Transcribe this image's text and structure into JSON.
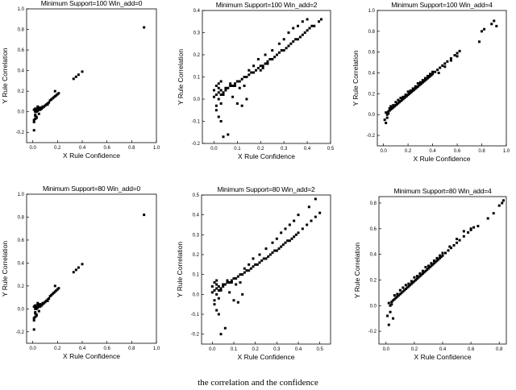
{
  "chart_data": [
    {
      "type": "scatter",
      "title": "Minimum Support=100  Win_add=0",
      "xlabel": "X Rule Confidence",
      "ylabel": "Y Rule Correlation",
      "xlim": [
        -0.05,
        1.0
      ],
      "ylim": [
        -0.3,
        1.0
      ],
      "xticks": [
        "0.0",
        "0.2",
        "0.4",
        "0.6",
        "0.8",
        "1.0"
      ],
      "yticks": [
        "-0.2",
        "0.0",
        "0.2",
        "0.4",
        "0.6",
        "0.8",
        "1.0"
      ],
      "grid": false,
      "series": [
        {
          "x": [
            0.01,
            0.01,
            0.02,
            0.02,
            0.02,
            0.03,
            0.03,
            0.04,
            0.04,
            0.05,
            0.05,
            0.06,
            0.07,
            0.08,
            0.09,
            0.1,
            0.11,
            0.12,
            0.13,
            0.14,
            0.15,
            0.16,
            0.17,
            0.18,
            0.19,
            0.2,
            0.21,
            0.02,
            0.03,
            0.05,
            0.07,
            0.01,
            0.02,
            0.03,
            0.01,
            0.02,
            0.04,
            0.06,
            0.08,
            0.1,
            0.12,
            0.18,
            0.33,
            0.35,
            0.37,
            0.4,
            0.9
          ],
          "y": [
            -0.18,
            -0.1,
            -0.07,
            -0.03,
            0.0,
            0.02,
            -0.05,
            0.01,
            0.04,
            0.03,
            -0.02,
            0.02,
            0.03,
            0.04,
            0.05,
            0.06,
            0.07,
            0.08,
            0.09,
            0.11,
            0.12,
            0.13,
            0.14,
            0.15,
            0.16,
            0.17,
            0.18,
            0.01,
            0.0,
            0.02,
            0.03,
            -0.08,
            -0.04,
            -0.06,
            0.02,
            0.03,
            0.05,
            0.04,
            0.05,
            0.06,
            0.07,
            0.2,
            0.32,
            0.34,
            0.36,
            0.39,
            0.82
          ]
        }
      ]
    },
    {
      "type": "scatter",
      "title": "Minimum Support=100  Win_add=2",
      "xlabel": "X Rule Confidence",
      "ylabel": "Y Rule Correlation",
      "xlim": [
        -0.05,
        0.5
      ],
      "ylim": [
        -0.2,
        0.4
      ],
      "xticks": [
        "0.0",
        "0.1",
        "0.2",
        "0.3",
        "0.4",
        "0.5"
      ],
      "yticks": [
        "-0.2",
        "-0.1",
        "0.0",
        "0.1",
        "0.2",
        "0.3",
        "0.4"
      ],
      "grid": false,
      "series": [
        {
          "x": [
            0.0,
            0.01,
            0.01,
            0.02,
            0.02,
            0.03,
            0.03,
            0.04,
            0.05,
            0.06,
            0.07,
            0.08,
            0.09,
            0.1,
            0.11,
            0.12,
            0.13,
            0.14,
            0.15,
            0.16,
            0.17,
            0.18,
            0.19,
            0.2,
            0.21,
            0.22,
            0.23,
            0.24,
            0.25,
            0.26,
            0.27,
            0.28,
            0.29,
            0.3,
            0.31,
            0.32,
            0.33,
            0.34,
            0.35,
            0.36,
            0.37,
            0.38,
            0.39,
            0.4,
            0.41,
            0.42,
            0.43,
            0.45,
            0.46,
            0.01,
            0.02,
            0.03,
            0.04,
            0.06,
            0.08,
            0.1,
            0.12,
            0.14,
            0.05,
            0.07,
            0.09,
            0.11,
            0.13,
            0.0,
            0.01,
            0.02,
            0.03,
            0.04,
            0.02,
            0.03,
            0.15,
            0.17,
            0.19,
            0.22,
            0.25,
            0.28,
            0.3,
            0.32,
            0.34,
            0.36,
            0.38,
            0.4,
            0.2,
            0.21,
            0.23,
            0.25,
            0.27
          ],
          "y": [
            0.01,
            -0.03,
            0.02,
            0.0,
            0.03,
            0.02,
            0.04,
            0.03,
            0.04,
            0.05,
            0.06,
            0.06,
            0.07,
            0.08,
            0.08,
            0.09,
            0.1,
            0.1,
            0.11,
            0.12,
            0.12,
            0.13,
            0.14,
            0.15,
            0.15,
            0.16,
            0.17,
            0.18,
            0.18,
            0.19,
            0.2,
            0.21,
            0.22,
            0.22,
            0.23,
            0.24,
            0.25,
            0.26,
            0.27,
            0.27,
            0.28,
            0.29,
            0.3,
            0.31,
            0.32,
            0.33,
            0.33,
            0.35,
            0.36,
            -0.05,
            -0.08,
            -0.1,
            -0.17,
            -0.16,
            0.01,
            -0.02,
            -0.03,
            0.0,
            0.05,
            0.07,
            0.06,
            0.05,
            0.06,
            0.04,
            0.06,
            0.05,
            -0.02,
            0.02,
            0.07,
            0.08,
            0.13,
            0.15,
            0.18,
            0.2,
            0.22,
            0.25,
            0.27,
            0.3,
            0.32,
            0.33,
            0.35,
            0.36,
            0.13,
            0.14,
            0.16,
            0.18,
            0.2
          ]
        }
      ]
    },
    {
      "type": "scatter",
      "title": "Minimum Support=100  Win_add=4",
      "xlabel": "X Rule Confidence",
      "ylabel": "Y Rule Correlation",
      "xlim": [
        -0.05,
        1.0
      ],
      "ylim": [
        -0.3,
        1.0
      ],
      "xticks": [
        "0.0",
        "0.2",
        "0.4",
        "0.6",
        "0.8",
        "1.0"
      ],
      "yticks": [
        "-0.2",
        "0.0",
        "0.2",
        "0.4",
        "0.6",
        "0.8",
        "1.0"
      ],
      "grid": false,
      "series": [
        {
          "x": [
            0.01,
            0.02,
            0.03,
            0.04,
            0.05,
            0.06,
            0.07,
            0.08,
            0.09,
            0.1,
            0.11,
            0.12,
            0.13,
            0.14,
            0.15,
            0.16,
            0.17,
            0.18,
            0.19,
            0.2,
            0.21,
            0.22,
            0.23,
            0.24,
            0.25,
            0.26,
            0.27,
            0.28,
            0.29,
            0.3,
            0.31,
            0.32,
            0.33,
            0.34,
            0.35,
            0.36,
            0.37,
            0.38,
            0.39,
            0.4,
            0.42,
            0.44,
            0.46,
            0.48,
            0.5,
            0.52,
            0.55,
            0.58,
            0.6,
            0.62,
            0.02,
            0.03,
            0.04,
            0.05,
            0.06,
            0.08,
            0.1,
            0.12,
            0.14,
            0.16,
            0.18,
            0.2,
            0.22,
            0.24,
            0.26,
            0.28,
            0.3,
            0.32,
            0.34,
            0.36,
            0.38,
            0.4,
            0.45,
            0.5,
            0.55,
            0.6,
            0.78,
            0.8,
            0.82,
            0.88,
            0.9,
            0.92
          ],
          "y": [
            -0.05,
            0.02,
            0.0,
            0.03,
            0.04,
            0.05,
            0.06,
            0.07,
            0.08,
            0.09,
            0.1,
            0.11,
            0.12,
            0.13,
            0.14,
            0.15,
            0.16,
            0.17,
            0.18,
            0.19,
            0.2,
            0.21,
            0.22,
            0.23,
            0.24,
            0.25,
            0.26,
            0.27,
            0.28,
            0.29,
            0.3,
            0.31,
            0.32,
            0.33,
            0.34,
            0.35,
            0.36,
            0.37,
            0.38,
            0.39,
            0.41,
            0.43,
            0.45,
            0.47,
            0.49,
            0.51,
            0.54,
            0.57,
            0.59,
            0.61,
            -0.08,
            -0.03,
            0.01,
            0.06,
            0.08,
            0.09,
            0.12,
            0.14,
            0.16,
            0.17,
            0.19,
            0.22,
            0.23,
            0.25,
            0.27,
            0.3,
            0.31,
            0.33,
            0.35,
            0.37,
            0.39,
            0.41,
            0.4,
            0.46,
            0.52,
            0.56,
            0.7,
            0.8,
            0.82,
            0.87,
            0.9,
            0.85
          ]
        }
      ]
    },
    {
      "type": "scatter",
      "title": "Minimum Support=80  Win_add=0",
      "xlabel": "X Rule Confidence",
      "ylabel": "Y Rule Correlation",
      "xlim": [
        -0.05,
        1.0
      ],
      "ylim": [
        -0.3,
        1.0
      ],
      "xticks": [
        "0.0",
        "0.2",
        "0.4",
        "0.6",
        "0.8",
        "1.0"
      ],
      "yticks": [
        "-0.2",
        "0.0",
        "0.2",
        "0.4",
        "0.6",
        "0.8",
        "1.0"
      ],
      "grid": false,
      "series": [
        {
          "x": [
            0.01,
            0.01,
            0.02,
            0.02,
            0.02,
            0.03,
            0.03,
            0.04,
            0.04,
            0.05,
            0.05,
            0.06,
            0.07,
            0.08,
            0.09,
            0.1,
            0.11,
            0.12,
            0.13,
            0.14,
            0.15,
            0.16,
            0.17,
            0.18,
            0.19,
            0.2,
            0.21,
            0.02,
            0.03,
            0.05,
            0.07,
            0.01,
            0.02,
            0.03,
            0.01,
            0.02,
            0.04,
            0.06,
            0.08,
            0.1,
            0.12,
            0.18,
            0.33,
            0.35,
            0.37,
            0.4,
            0.9
          ],
          "y": [
            -0.18,
            -0.1,
            -0.07,
            -0.03,
            0.0,
            0.02,
            -0.05,
            0.01,
            0.04,
            0.03,
            -0.02,
            0.02,
            0.03,
            0.04,
            0.05,
            0.06,
            0.07,
            0.08,
            0.09,
            0.11,
            0.12,
            0.13,
            0.14,
            0.15,
            0.16,
            0.17,
            0.18,
            0.01,
            0.0,
            0.02,
            0.03,
            -0.08,
            -0.04,
            -0.06,
            0.02,
            0.03,
            0.05,
            0.04,
            0.05,
            0.06,
            0.07,
            0.2,
            0.32,
            0.34,
            0.36,
            0.39,
            0.82
          ]
        }
      ]
    },
    {
      "type": "scatter",
      "title": "Minimum Support=80  Win_add=2",
      "xlabel": "X Rule Confidence",
      "ylabel": "Y Rule Correlation",
      "xlim": [
        -0.05,
        0.55
      ],
      "ylim": [
        -0.25,
        0.5
      ],
      "xticks": [
        "0.0",
        "0.1",
        "0.2",
        "0.3",
        "0.4",
        "0.5"
      ],
      "yticks": [
        "-0.2",
        "-0.1",
        "0.0",
        "0.1",
        "0.2",
        "0.3",
        "0.4",
        "0.5"
      ],
      "grid": false,
      "series": [
        {
          "x": [
            0.0,
            0.01,
            0.01,
            0.02,
            0.02,
            0.03,
            0.03,
            0.04,
            0.05,
            0.06,
            0.07,
            0.08,
            0.09,
            0.1,
            0.11,
            0.12,
            0.13,
            0.14,
            0.15,
            0.16,
            0.17,
            0.18,
            0.19,
            0.2,
            0.21,
            0.22,
            0.23,
            0.24,
            0.25,
            0.26,
            0.27,
            0.28,
            0.29,
            0.3,
            0.31,
            0.32,
            0.33,
            0.34,
            0.35,
            0.36,
            0.37,
            0.38,
            0.39,
            0.4,
            0.42,
            0.44,
            0.46,
            0.48,
            0.5,
            0.01,
            0.02,
            0.03,
            0.04,
            0.06,
            0.08,
            0.1,
            0.12,
            0.14,
            0.05,
            0.07,
            0.09,
            0.11,
            0.13,
            0.0,
            0.01,
            0.02,
            0.03,
            0.04,
            0.02,
            0.15,
            0.17,
            0.19,
            0.22,
            0.25,
            0.28,
            0.3,
            0.32,
            0.34,
            0.36,
            0.38,
            0.4,
            0.45,
            0.48
          ],
          "y": [
            0.01,
            -0.03,
            0.02,
            0.0,
            0.03,
            0.02,
            0.04,
            0.03,
            0.04,
            0.05,
            0.06,
            0.06,
            0.07,
            0.08,
            0.08,
            0.09,
            0.1,
            0.1,
            0.11,
            0.12,
            0.12,
            0.13,
            0.14,
            0.15,
            0.15,
            0.16,
            0.17,
            0.18,
            0.18,
            0.19,
            0.2,
            0.21,
            0.22,
            0.22,
            0.23,
            0.24,
            0.25,
            0.26,
            0.27,
            0.27,
            0.28,
            0.29,
            0.3,
            0.31,
            0.33,
            0.35,
            0.37,
            0.39,
            0.41,
            -0.05,
            -0.08,
            -0.1,
            -0.2,
            -0.17,
            0.01,
            -0.03,
            -0.04,
            0.0,
            0.05,
            0.07,
            0.06,
            0.05,
            0.06,
            0.04,
            0.06,
            0.05,
            -0.02,
            0.02,
            0.07,
            0.13,
            0.15,
            0.18,
            0.2,
            0.23,
            0.26,
            0.28,
            0.31,
            0.33,
            0.35,
            0.37,
            0.4,
            0.44,
            0.48
          ]
        }
      ]
    },
    {
      "type": "scatter",
      "title": "Minimum Support=80  Win_add=4",
      "xlabel": "X Rule Confidence",
      "ylabel": "Y Rule Correlation",
      "xlim": [
        -0.05,
        0.85
      ],
      "ylim": [
        -0.3,
        0.85
      ],
      "xticks": [
        "0.0",
        "0.2",
        "0.4",
        "0.6",
        "0.8"
      ],
      "yticks": [
        "-0.2",
        "0.0",
        "0.2",
        "0.4",
        "0.6",
        "0.8"
      ],
      "grid": false,
      "series": [
        {
          "x": [
            0.01,
            0.02,
            0.03,
            0.04,
            0.05,
            0.06,
            0.07,
            0.08,
            0.09,
            0.1,
            0.11,
            0.12,
            0.13,
            0.14,
            0.15,
            0.16,
            0.17,
            0.18,
            0.19,
            0.2,
            0.21,
            0.22,
            0.23,
            0.24,
            0.25,
            0.26,
            0.27,
            0.28,
            0.29,
            0.3,
            0.31,
            0.32,
            0.33,
            0.34,
            0.35,
            0.36,
            0.37,
            0.38,
            0.39,
            0.4,
            0.42,
            0.44,
            0.46,
            0.48,
            0.5,
            0.52,
            0.55,
            0.58,
            0.6,
            0.62,
            0.02,
            0.03,
            0.04,
            0.05,
            0.06,
            0.08,
            0.1,
            0.12,
            0.14,
            0.16,
            0.18,
            0.2,
            0.22,
            0.24,
            0.26,
            0.28,
            0.3,
            0.32,
            0.34,
            0.36,
            0.38,
            0.4,
            0.45,
            0.5,
            0.55,
            0.6,
            0.65,
            0.72,
            0.76,
            0.8,
            0.82,
            0.83
          ],
          "y": [
            -0.08,
            0.02,
            0.0,
            0.03,
            0.04,
            0.05,
            0.06,
            0.07,
            0.08,
            0.09,
            0.1,
            0.11,
            0.12,
            0.13,
            0.14,
            0.15,
            0.16,
            0.17,
            0.18,
            0.19,
            0.2,
            0.21,
            0.22,
            0.23,
            0.24,
            0.25,
            0.26,
            0.27,
            0.28,
            0.29,
            0.3,
            0.31,
            0.32,
            0.33,
            0.34,
            0.35,
            0.36,
            0.37,
            0.38,
            0.39,
            0.41,
            0.43,
            0.45,
            0.47,
            0.49,
            0.51,
            0.54,
            0.57,
            0.59,
            0.61,
            -0.15,
            -0.05,
            0.01,
            -0.1,
            0.08,
            0.09,
            0.12,
            0.14,
            0.16,
            0.17,
            0.19,
            0.22,
            0.23,
            0.25,
            0.27,
            0.3,
            0.31,
            0.33,
            0.35,
            0.37,
            0.39,
            0.41,
            0.46,
            0.52,
            0.58,
            0.6,
            0.62,
            0.68,
            0.72,
            0.78,
            0.8,
            0.82
          ]
        }
      ]
    }
  ],
  "caption": "the correlation and the confidence"
}
